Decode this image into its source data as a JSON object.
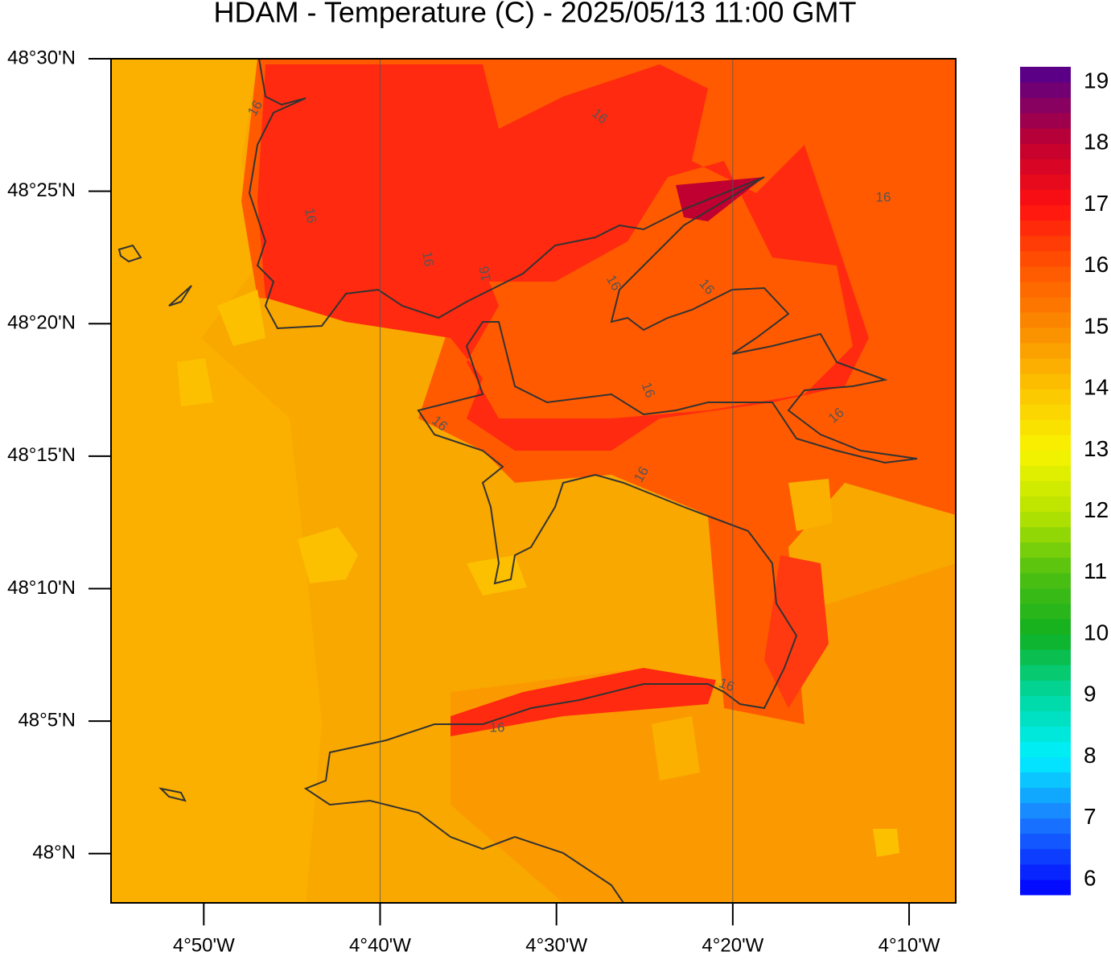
{
  "map": {
    "title": "HDAM - Temperature (C)  -  2025/05/13  11:00 GMT",
    "lat_range": [
      47.969,
      48.5
    ],
    "lon_range": [
      -4.921,
      -4.1226
    ],
    "lat_ticks": [
      {
        "value": 48.5,
        "label": "48°30'N"
      },
      {
        "value": 48.41667,
        "label": "48°25'N"
      },
      {
        "value": 48.33333,
        "label": "48°20'N"
      },
      {
        "value": 48.25,
        "label": "48°15'N"
      },
      {
        "value": 48.16667,
        "label": "48°10'N"
      },
      {
        "value": 48.08333,
        "label": "48°5'N"
      },
      {
        "value": 48,
        "label": "48°N"
      }
    ],
    "lon_ticks": [
      {
        "value": -4.83333,
        "label": "4°50'W"
      },
      {
        "value": -4.66667,
        "label": "4°40'W"
      },
      {
        "value": -4.5,
        "label": "4°30'W"
      },
      {
        "value": -4.33333,
        "label": "4°20'W"
      },
      {
        "value": -4.16667,
        "label": "4°10'W"
      }
    ],
    "colorbar": {
      "range": [
        5.75,
        19.25
      ],
      "step": 0.25,
      "ticks": [
        6,
        7,
        8,
        9,
        10,
        11,
        12,
        13,
        14,
        15,
        16,
        17,
        18,
        19
      ],
      "color_stops": [
        [
          5.75,
          "#0000ff"
        ],
        [
          7,
          "#1a7cff"
        ],
        [
          8,
          "#00f0ff"
        ],
        [
          9,
          "#00d8a0"
        ],
        [
          10,
          "#10b020"
        ],
        [
          11,
          "#50c010"
        ],
        [
          12,
          "#b8e400"
        ],
        [
          13,
          "#f8f400"
        ],
        [
          14,
          "#fcc400"
        ],
        [
          15,
          "#fb8c00"
        ],
        [
          16,
          "#ff5400"
        ],
        [
          17,
          "#ff1010"
        ],
        [
          18,
          "#c00030"
        ],
        [
          19.25,
          "#500090"
        ]
      ]
    },
    "contour_labels": [
      "16",
      "16",
      "16",
      "16",
      "16",
      "16",
      "16",
      "16",
      "16",
      "16",
      "16",
      "16",
      "16",
      "16"
    ]
  }
}
